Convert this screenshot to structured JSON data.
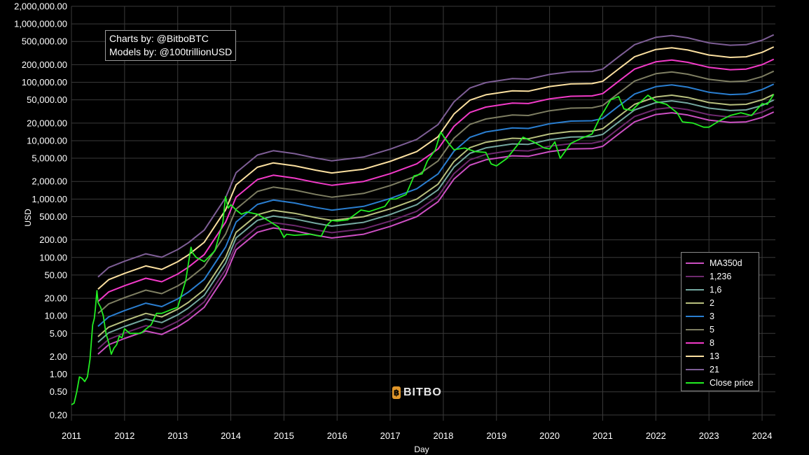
{
  "chart_data": {
    "type": "line",
    "xlabel": "Day",
    "ylabel": "USD",
    "yscale": "log",
    "xlim": [
      2011.0,
      2024.25
    ],
    "ylim": [
      0.16,
      2000000
    ],
    "grid": true,
    "legend_position": "bottom-right",
    "x_ticks": [
      "2011",
      "2012",
      "2013",
      "2014",
      "2015",
      "2016",
      "2017",
      "2018",
      "2019",
      "2020",
      "2021",
      "2022",
      "2023",
      "2024"
    ],
    "y_ticks": [
      {
        "value": 2000000,
        "label": "2,000,000.00"
      },
      {
        "value": 1000000,
        "label": "1,000,000.00"
      },
      {
        "value": 500000,
        "label": "500,000.00"
      },
      {
        "value": 200000,
        "label": "200,000.00"
      },
      {
        "value": 100000,
        "label": "100,000.00"
      },
      {
        "value": 50000,
        "label": "50,000.00"
      },
      {
        "value": 20000,
        "label": "20,000.00"
      },
      {
        "value": 10000,
        "label": "10,000.00"
      },
      {
        "value": 5000,
        "label": "5,000.00"
      },
      {
        "value": 2000,
        "label": "2,000.00"
      },
      {
        "value": 1000,
        "label": "1,000.00"
      },
      {
        "value": 500,
        "label": "500.00"
      },
      {
        "value": 200,
        "label": "200.00"
      },
      {
        "value": 100,
        "label": "100.00"
      },
      {
        "value": 50,
        "label": "50.00"
      },
      {
        "value": 20,
        "label": "20.00"
      },
      {
        "value": 10,
        "label": "10.00"
      },
      {
        "value": 5,
        "label": "5.00"
      },
      {
        "value": 2,
        "label": "2.00"
      },
      {
        "value": 1,
        "label": "1.00"
      },
      {
        "value": 0.5,
        "label": "0.50"
      },
      {
        "value": 0.2,
        "label": "0.20"
      }
    ],
    "ma350": {
      "name": "MA350d",
      "x": [
        2011.5,
        2011.7,
        2012.0,
        2012.4,
        2012.7,
        2013.0,
        2013.2,
        2013.5,
        2013.9,
        2014.1,
        2014.5,
        2014.8,
        2015.2,
        2015.6,
        2015.9,
        2016.5,
        2017.0,
        2017.5,
        2017.9,
        2018.2,
        2018.5,
        2018.8,
        2019.3,
        2019.6,
        2020.0,
        2020.4,
        2020.8,
        2021.0,
        2021.3,
        2021.6,
        2022.0,
        2022.3,
        2022.6,
        2023.0,
        2023.4,
        2023.7,
        2024.0,
        2024.22
      ],
      "values": [
        2.2,
        3.2,
        4.1,
        5.5,
        4.8,
        6.5,
        8.5,
        14,
        50,
        135,
        270,
        320,
        285,
        240,
        215,
        250,
        340,
        500,
        900,
        2200,
        3800,
        4700,
        5500,
        5400,
        6500,
        7200,
        7300,
        8000,
        13000,
        21000,
        28000,
        30000,
        27500,
        22500,
        20500,
        21000,
        25000,
        31000
      ]
    },
    "multipliers": [
      1.236,
      1.6,
      2,
      3,
      5,
      8,
      13,
      21
    ],
    "series": [
      {
        "name": "MA350d",
        "color": "#cc4fc2"
      },
      {
        "name": "1,236",
        "color": "#6e2a6e"
      },
      {
        "name": "1,6",
        "color": "#74a8a0"
      },
      {
        "name": "2",
        "color": "#b8c07e"
      },
      {
        "name": "3",
        "color": "#2a7ed0"
      },
      {
        "name": "5",
        "color": "#7e7e62"
      },
      {
        "name": "8",
        "color": "#f23ac8"
      },
      {
        "name": "13",
        "color": "#fbe0a0"
      },
      {
        "name": "21",
        "color": "#7e5e96"
      },
      {
        "name": "Close price",
        "color": "#22ee22"
      }
    ],
    "close_price": {
      "name": "Close price",
      "x": [
        2011.0,
        2011.05,
        2011.1,
        2011.15,
        2011.2,
        2011.25,
        2011.3,
        2011.35,
        2011.4,
        2011.43,
        2011.45,
        2011.48,
        2011.5,
        2011.55,
        2011.6,
        2011.65,
        2011.7,
        2011.75,
        2011.8,
        2011.85,
        2011.9,
        2011.95,
        2012.0,
        2012.1,
        2012.3,
        2012.5,
        2012.6,
        2012.7,
        2012.9,
        2013.0,
        2013.15,
        2013.25,
        2013.28,
        2013.35,
        2013.5,
        2013.7,
        2013.85,
        2013.9,
        2013.95,
        2014.0,
        2014.1,
        2014.2,
        2014.3,
        2014.5,
        2014.7,
        2014.9,
        2015.0,
        2015.05,
        2015.2,
        2015.5,
        2015.7,
        2015.8,
        2015.9,
        2016.0,
        2016.2,
        2016.45,
        2016.6,
        2016.9,
        2017.0,
        2017.1,
        2017.3,
        2017.45,
        2017.6,
        2017.7,
        2017.85,
        2017.95,
        2018.0,
        2018.1,
        2018.2,
        2018.4,
        2018.6,
        2018.8,
        2018.9,
        2019.0,
        2019.2,
        2019.4,
        2019.5,
        2019.7,
        2019.9,
        2020.0,
        2020.1,
        2020.2,
        2020.4,
        2020.6,
        2020.8,
        2020.95,
        2021.05,
        2021.15,
        2021.3,
        2021.4,
        2021.55,
        2021.7,
        2021.85,
        2022.0,
        2022.2,
        2022.4,
        2022.5,
        2022.7,
        2022.9,
        2023.0,
        2023.2,
        2023.4,
        2023.6,
        2023.8,
        2024.0,
        2024.1,
        2024.22
      ],
      "values": [
        0.3,
        0.32,
        0.5,
        0.9,
        0.85,
        0.75,
        0.9,
        1.8,
        7,
        9,
        13,
        27,
        17,
        14,
        10,
        5,
        3.5,
        2.2,
        2.8,
        3.2,
        4.5,
        4.2,
        6,
        5,
        5,
        7,
        11,
        11,
        13,
        14,
        40,
        150,
        120,
        100,
        85,
        130,
        400,
        1100,
        700,
        800,
        650,
        550,
        600,
        550,
        430,
        330,
        220,
        250,
        240,
        250,
        230,
        350,
        430,
        420,
        440,
        650,
        610,
        750,
        1000,
        1000,
        1200,
        2500,
        2700,
        4500,
        7000,
        14000,
        12000,
        9000,
        7000,
        7500,
        6500,
        6300,
        4000,
        3700,
        5000,
        8500,
        11500,
        9500,
        7500,
        7200,
        9500,
        5000,
        9000,
        11000,
        13000,
        25000,
        35000,
        50000,
        57000,
        35000,
        33000,
        45000,
        60000,
        47000,
        42000,
        30000,
        21000,
        20000,
        17000,
        17000,
        22000,
        27000,
        30000,
        27000,
        43000,
        42000,
        62000
      ]
    }
  },
  "credit": {
    "line1": "Charts by: @BitboBTC",
    "line2": "Models by: @100trillionUSD"
  },
  "logo": {
    "text": "BITBO",
    "mark": "฿",
    "color": "#e0962a"
  }
}
